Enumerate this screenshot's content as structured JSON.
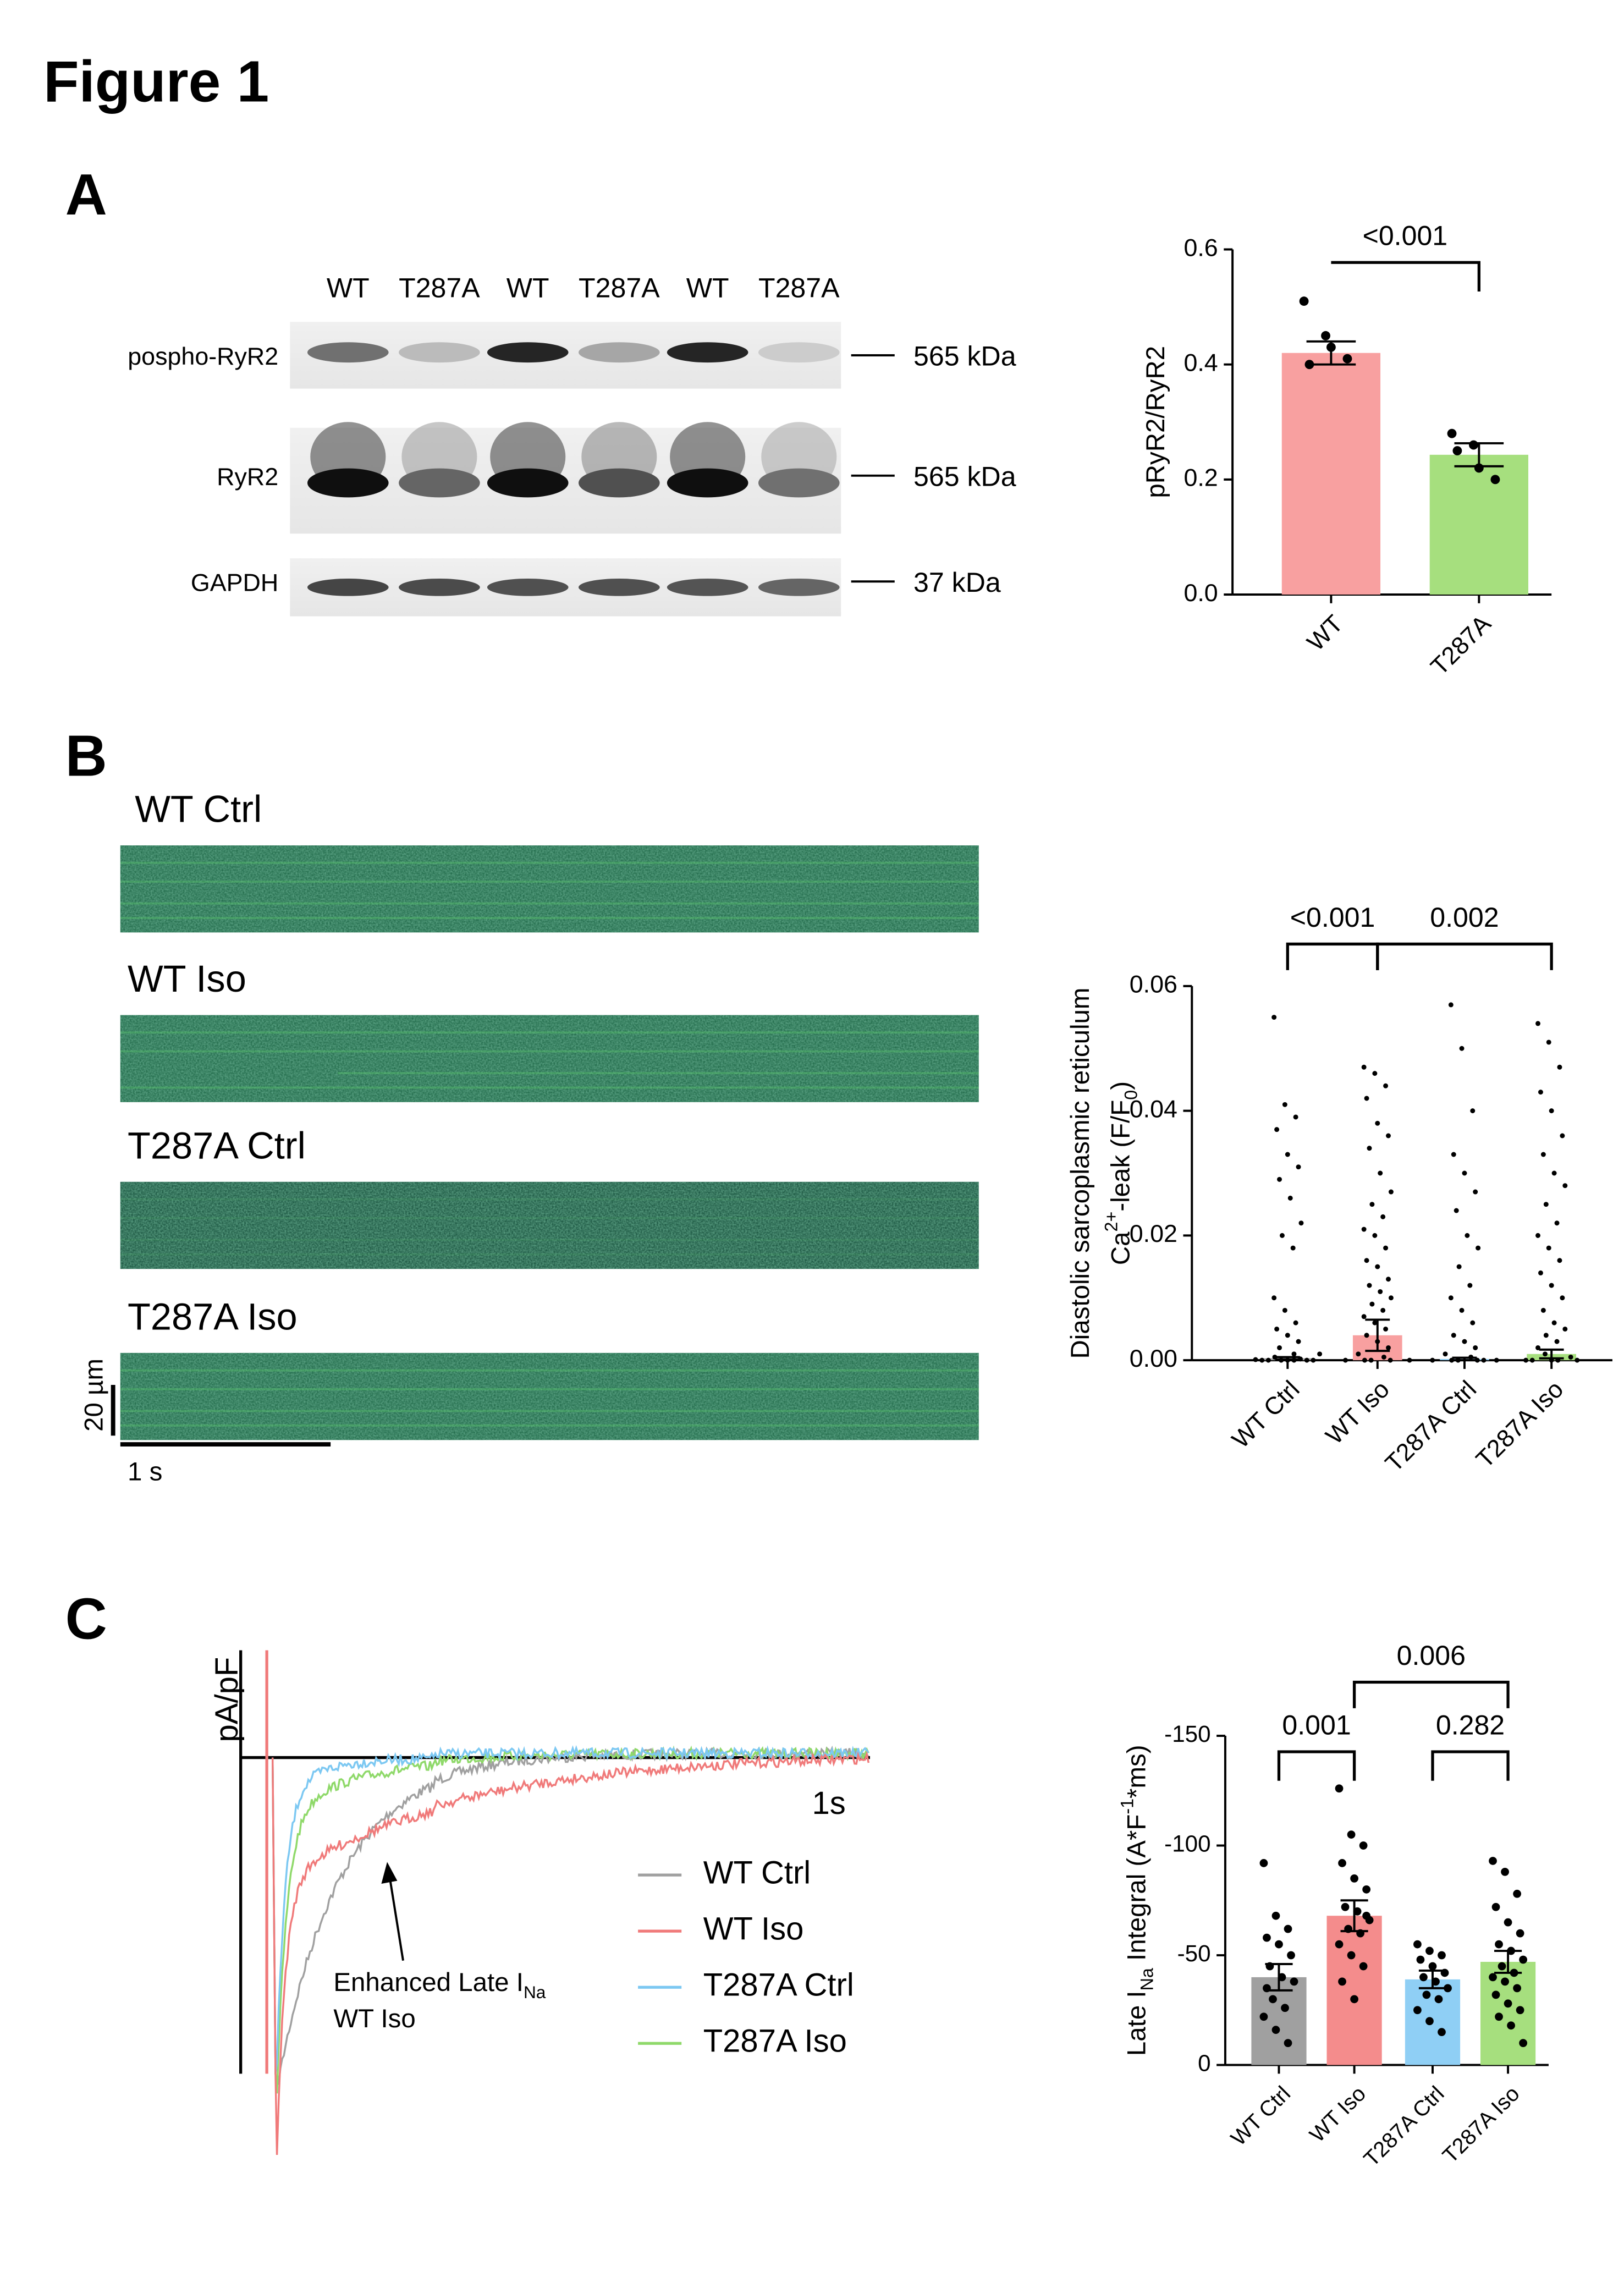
{
  "figure": {
    "title": "Figure 1",
    "panel_labels": [
      "A",
      "B",
      "C"
    ]
  },
  "western_blot": {
    "lanes": [
      "WT",
      "T287A",
      "WT",
      "T287A",
      "WT",
      "T287A"
    ],
    "rows": [
      {
        "label": "pospho-RyR2",
        "size": "565 kDa"
      },
      {
        "label": "RyR2",
        "size": "565 kDa"
      },
      {
        "label": "GAPDH",
        "size": "37 kDa"
      }
    ]
  },
  "linescans": {
    "conditions": [
      "WT Ctrl",
      "WT Iso",
      "T287A Ctrl",
      "T287A Iso"
    ],
    "scale_y": "20 µm",
    "scale_x": "1 s"
  },
  "trace_panel": {
    "y_label": "pA/pF",
    "time_label": "1s",
    "series": [
      {
        "name": "WT Ctrl",
        "color": "#a0a0a0"
      },
      {
        "name": "WT Iso",
        "color": "#f07a7a"
      },
      {
        "name": "T287A Ctrl",
        "color": "#7cc8f2"
      },
      {
        "name": "T287A Iso",
        "color": "#8fd96a"
      }
    ],
    "annotation": [
      [
        {
          "text": "Enhanced Late I"
        },
        {
          "text": "Na",
          "shift": "sub"
        }
      ],
      [
        {
          "text": "WT Iso"
        }
      ]
    ]
  },
  "chart_data": [
    {
      "type": "bar",
      "y_label": [
        [
          {
            "text": "pRyR2/RyR2"
          }
        ]
      ],
      "categories": [
        "WT",
        "T287A"
      ],
      "values": [
        0.42,
        0.243
      ],
      "errors": [
        0.02,
        0.02
      ],
      "colors": [
        "#f8a0a0",
        "#a6df7e"
      ],
      "points": [
        [
          0.51,
          0.45,
          0.41,
          0.4,
          0.43
        ],
        [
          0.28,
          0.26,
          0.2,
          0.25,
          0.22
        ]
      ],
      "ylim": [
        0,
        0.6
      ],
      "yticks": [
        {
          "value": 0,
          "label": "0.0"
        },
        0.2,
        0.4,
        0.6
      ],
      "comparisons": [
        {
          "from": 0,
          "to": 1,
          "label": "<0.001"
        }
      ]
    },
    {
      "type": "bar",
      "y_label": [
        [
          {
            "text": "Diastolic sarcoplasmic reticulum"
          }
        ],
        [
          {
            "text": "Ca"
          },
          {
            "text": "2+",
            "shift": "super"
          },
          {
            "text": "-leak (F/F"
          },
          {
            "text": "0",
            "shift": "sub"
          },
          {
            "text": ")"
          }
        ]
      ],
      "categories": [
        "WT Ctrl",
        "WT Iso",
        "T287A Ctrl",
        "T287A Iso"
      ],
      "values": [
        0.0003,
        0.004,
        0.0002,
        0.001
      ],
      "errors": [
        0.0002,
        0.0025,
        0.0002,
        0.0007
      ],
      "colors": [
        "#a0a0a0",
        "#f8a0a0",
        "#8fcff5",
        "#a6df7e"
      ],
      "points": [
        [
          0.055,
          0.041,
          0.039,
          0.037,
          0.033,
          0.031,
          0.029,
          0.026,
          0.022,
          0.02,
          0.018,
          0.01,
          0.008,
          0.006,
          0.005,
          0.004,
          0.003,
          0.002,
          0.001,
          0.001,
          0.0005,
          0.0002,
          0.0001,
          0,
          0,
          0,
          0,
          0,
          0,
          0
        ],
        [
          0.047,
          0.046,
          0.044,
          0.042,
          0.038,
          0.036,
          0.034,
          0.03,
          0.027,
          0.025,
          0.023,
          0.021,
          0.02,
          0.018,
          0.016,
          0.015,
          0.013,
          0.012,
          0.011,
          0.01,
          0.009,
          0.008,
          0.007,
          0.006,
          0.005,
          0.004,
          0.003,
          0.002,
          0.001,
          0.0005,
          0,
          0,
          0,
          0,
          0
        ],
        [
          0.057,
          0.05,
          0.04,
          0.033,
          0.03,
          0.027,
          0.024,
          0.02,
          0.018,
          0.015,
          0.012,
          0.01,
          0.008,
          0.006,
          0.004,
          0.003,
          0.002,
          0.001,
          0.0005,
          0,
          0,
          0,
          0,
          0,
          0
        ],
        [
          0.054,
          0.051,
          0.047,
          0.043,
          0.04,
          0.036,
          0.033,
          0.03,
          0.028,
          0.025,
          0.022,
          0.02,
          0.018,
          0.016,
          0.014,
          0.012,
          0.01,
          0.008,
          0.006,
          0.005,
          0.004,
          0.003,
          0.002,
          0.001,
          0.0005,
          0,
          0,
          0,
          0,
          0
        ]
      ],
      "ylim": [
        0,
        0.06
      ],
      "yticks": [
        {
          "value": 0,
          "label": "0.00"
        },
        0.02,
        0.04,
        0.06
      ],
      "comparisons": [
        {
          "from": 0,
          "to": 1,
          "label": "<0.001"
        },
        {
          "from": 1,
          "to": 3,
          "label": "0.002"
        }
      ]
    },
    {
      "type": "bar",
      "y_label": [
        [
          {
            "text": "Late I"
          },
          {
            "text": "Na",
            "shift": "sub"
          },
          {
            "text": " Integral (A*F"
          },
          {
            "text": "-1",
            "shift": "super"
          },
          {
            "text": "*ms)"
          }
        ]
      ],
      "categories": [
        "WT Ctrl",
        "WT Iso",
        "T287A Ctrl",
        "T287A Iso"
      ],
      "values": [
        -40,
        -68,
        -39,
        -47
      ],
      "errors": [
        6,
        7,
        4,
        5
      ],
      "colors": [
        "#a0a0a0",
        "#f48c8c",
        "#8fcff5",
        "#a6df7e"
      ],
      "points": [
        [
          -92,
          -68,
          -62,
          -58,
          -55,
          -50,
          -45,
          -40,
          -38,
          -30,
          -26,
          -22,
          -16,
          -10,
          -35
        ],
        [
          -126,
          -105,
          -100,
          -92,
          -85,
          -80,
          -72,
          -70,
          -66,
          -62,
          -60,
          -55,
          -50,
          -45,
          -38,
          -30,
          -68
        ],
        [
          -55,
          -52,
          -50,
          -48,
          -45,
          -42,
          -40,
          -38,
          -35,
          -32,
          -30,
          -25,
          -20,
          -15
        ],
        [
          -93,
          -88,
          -78,
          -72,
          -65,
          -60,
          -55,
          -52,
          -48,
          -45,
          -42,
          -40,
          -38,
          -35,
          -32,
          -28,
          -25,
          -22,
          -18,
          -10
        ]
      ],
      "ylim": [
        0,
        -150
      ],
      "yticks": [
        0,
        -50,
        -100,
        -150
      ],
      "comparisons": [
        {
          "from": 0,
          "to": 1,
          "label": "0.001"
        },
        {
          "from": 2,
          "to": 3,
          "label": "0.282"
        },
        {
          "from": 1,
          "to": 3,
          "label": "0.006"
        }
      ]
    }
  ]
}
